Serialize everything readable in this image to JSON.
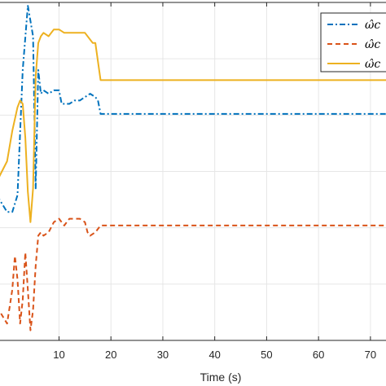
{
  "chart_data": {
    "type": "line",
    "title": "",
    "xlabel": "Time (s)",
    "ylabel": "",
    "xlim": [
      -2,
      73
    ],
    "ylim": [
      0,
      1
    ],
    "xticks": [
      10,
      20,
      30,
      40,
      50,
      60,
      70
    ],
    "xtick_labels": [
      "10",
      "20",
      "30",
      "40",
      "50",
      "60",
      "70"
    ],
    "grid": true,
    "legend_position": "top-right",
    "legend_labels": [
      "ω̂c",
      "ω̂c",
      "ω̂c"
    ],
    "series": [
      {
        "color": "#0072BD",
        "style": "dash-dot",
        "x": [
          -2,
          0,
          1,
          2,
          3,
          4,
          5,
          5.5,
          6,
          6.5,
          7,
          8,
          9,
          10,
          10.5,
          11,
          12,
          13,
          14,
          15,
          16,
          17,
          17.5,
          18,
          19,
          73
        ],
        "y": [
          0.43,
          0.38,
          0.38,
          0.43,
          0.8,
          0.99,
          0.9,
          0.45,
          0.8,
          0.73,
          0.74,
          0.73,
          0.74,
          0.74,
          0.7,
          0.7,
          0.7,
          0.71,
          0.71,
          0.72,
          0.73,
          0.72,
          0.71,
          0.67,
          0.67,
          0.67
        ]
      },
      {
        "color": "#D95319",
        "style": "dashed",
        "x": [
          -2,
          0,
          1,
          1.5,
          2,
          2.5,
          3,
          3.5,
          4,
          4.5,
          5,
          5.5,
          6,
          6.5,
          7,
          8,
          9,
          10,
          10.5,
          11,
          12,
          13,
          14,
          15,
          15.5,
          16,
          17,
          18,
          19,
          73
        ],
        "y": [
          0.1,
          0.05,
          0.15,
          0.25,
          0.18,
          0.05,
          0.12,
          0.26,
          0.15,
          0.03,
          0.09,
          0.22,
          0.31,
          0.32,
          0.31,
          0.32,
          0.35,
          0.36,
          0.35,
          0.34,
          0.36,
          0.36,
          0.36,
          0.35,
          0.32,
          0.31,
          0.32,
          0.34,
          0.34,
          0.34
        ]
      },
      {
        "color": "#EDB120",
        "style": "solid",
        "x": [
          -2,
          0,
          1,
          2,
          2.5,
          3,
          3.5,
          4,
          4.5,
          5,
          5.5,
          6,
          6.5,
          7,
          8,
          9,
          10,
          11,
          12,
          13,
          14,
          15,
          16,
          16.5,
          17,
          18,
          19,
          73
        ],
        "y": [
          0.47,
          0.53,
          0.62,
          0.69,
          0.71,
          0.7,
          0.6,
          0.44,
          0.35,
          0.45,
          0.78,
          0.88,
          0.9,
          0.91,
          0.9,
          0.92,
          0.92,
          0.91,
          0.91,
          0.91,
          0.91,
          0.91,
          0.89,
          0.88,
          0.88,
          0.77,
          0.77,
          0.77
        ]
      }
    ]
  }
}
